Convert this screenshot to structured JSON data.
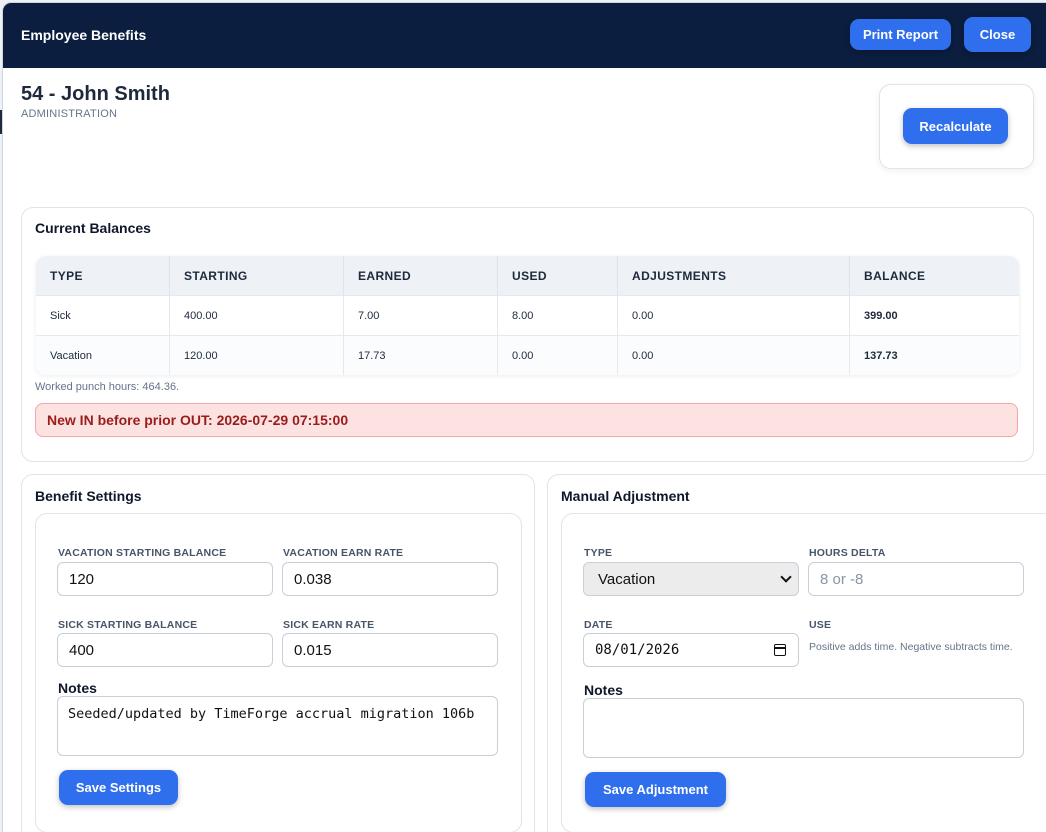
{
  "header": {
    "title": "Employee Benefits",
    "print_label": "Print Report",
    "close_label": "Close"
  },
  "employee": {
    "name": "54 - John Smith",
    "department": "ADMINISTRATION"
  },
  "recalculate_label": "Recalculate",
  "balances": {
    "title": "Current Balances",
    "columns": [
      "TYPE",
      "STARTING",
      "EARNED",
      "USED",
      "ADJUSTMENTS",
      "BALANCE"
    ],
    "rows": [
      {
        "type": "Sick",
        "starting": "400.00",
        "earned": "7.00",
        "used": "8.00",
        "adjustments": "0.00",
        "balance": "399.00"
      },
      {
        "type": "Vacation",
        "starting": "120.00",
        "earned": "17.73",
        "used": "0.00",
        "adjustments": "0.00",
        "balance": "137.73"
      }
    ],
    "note": "Worked punch hours: 464.36.",
    "alert": "New IN before prior OUT: 2026-07-29 07:15:00"
  },
  "settings": {
    "title": "Benefit Settings",
    "vacation_start_label": "VACATION STARTING BALANCE",
    "vacation_start_value": "120",
    "vacation_rate_label": "VACATION EARN RATE",
    "vacation_rate_value": "0.038",
    "sick_start_label": "SICK STARTING BALANCE",
    "sick_start_value": "400",
    "sick_rate_label": "SICK EARN RATE",
    "sick_rate_value": "0.015",
    "notes_label": "Notes",
    "notes_value": "Seeded/updated by TimeForge accrual migration 106b",
    "save_label": "Save Settings"
  },
  "adjustment": {
    "title": "Manual Adjustment",
    "type_label": "TYPE",
    "type_value": "Vacation",
    "hours_label": "HOURS DELTA",
    "hours_placeholder": "8 or -8",
    "date_label": "DATE",
    "date_value": "08/01/2026",
    "use_label": "USE",
    "use_help": "Positive adds time. Negative subtracts time.",
    "notes_label": "Notes",
    "notes_value": "",
    "save_label": "Save Adjustment"
  }
}
